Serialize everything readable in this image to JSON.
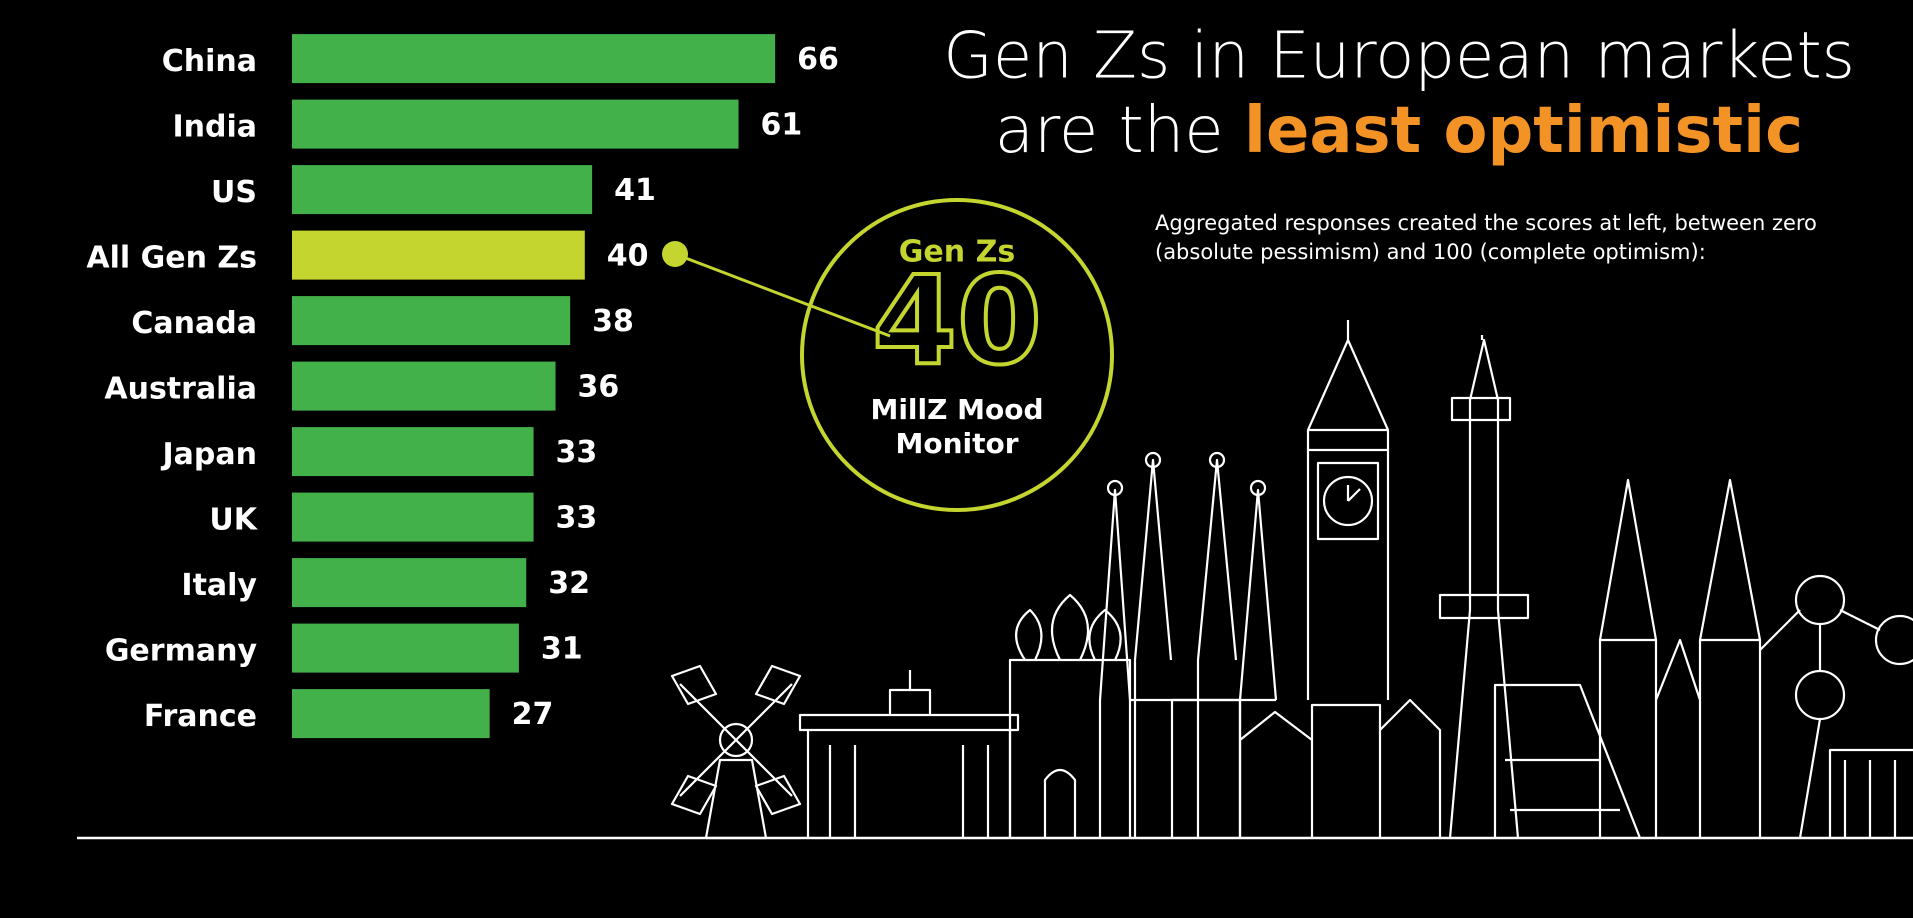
{
  "chart_data": {
    "type": "bar",
    "orientation": "horizontal",
    "title_lines": [
      "Gen Zs in European markets",
      "are the"
    ],
    "title_highlight": "least optimistic",
    "subtitle_lines": [
      "Aggregated responses created the scores at left, between zero",
      "(absolute pessimism) and 100 (complete optimism):"
    ],
    "categories": [
      "China",
      "India",
      "US",
      "All Gen Zs",
      "Canada",
      "Australia",
      "Japan",
      "UK",
      "Italy",
      "Germany",
      "France"
    ],
    "values": [
      66,
      61,
      41,
      40,
      38,
      36,
      33,
      33,
      32,
      31,
      27
    ],
    "colors": [
      "#43b149",
      "#43b149",
      "#43b149",
      "#c4d52f",
      "#43b149",
      "#43b149",
      "#43b149",
      "#43b149",
      "#43b149",
      "#43b149",
      "#43b149"
    ],
    "xlim": [
      0,
      100
    ],
    "callout": {
      "heading": "Gen Zs",
      "value": 40,
      "caption_lines": [
        "MillZ Mood",
        "Monitor"
      ],
      "color": "#c4d52f"
    },
    "highlight_color": "#f39326"
  }
}
